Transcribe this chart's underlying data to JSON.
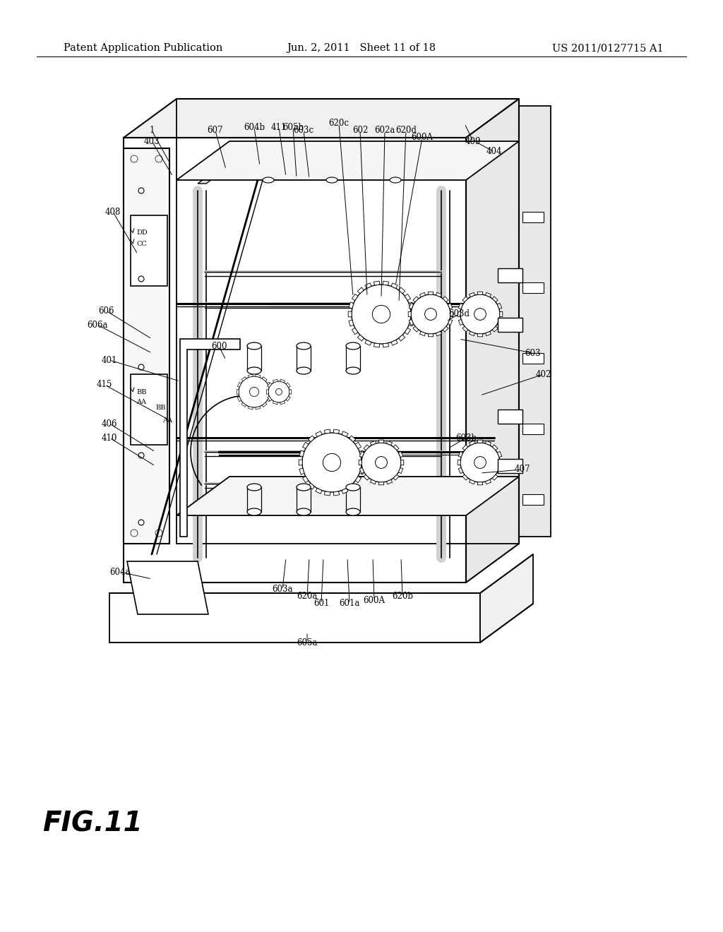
{
  "bg_color": "#ffffff",
  "header_left": "Patent Application Publication",
  "header_center": "Jun. 2, 2011   Sheet 11 of 18",
  "header_right": "US 2011/0127715 A1",
  "fig_label": "FIG.11",
  "header_fontsize": 10.5,
  "fig_label_fontsize": 28,
  "page_width": 10.24,
  "page_height": 13.2,
  "page_dpi": 100
}
